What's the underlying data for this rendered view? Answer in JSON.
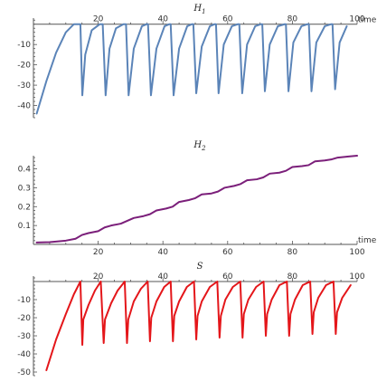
{
  "chart_data": [
    {
      "type": "line",
      "title": "H",
      "title_sub": "1",
      "xlabel": "time",
      "ylabel": "",
      "xlim": [
        0,
        100
      ],
      "ylim": [
        -46,
        3
      ],
      "x_ticks": [
        20,
        40,
        60,
        80,
        100
      ],
      "y_ticks": [
        -40,
        -30,
        -20,
        -10
      ],
      "color": "#5b84b8",
      "series": [
        {
          "x": [
            1,
            4,
            7,
            10,
            12.5,
            14.5,
            15.1,
            16,
            18,
            20.5,
            21.4,
            22.3,
            23.5,
            25.5,
            27.8,
            28.6,
            29.4,
            31,
            33.5,
            35,
            35.4,
            36.3,
            38,
            40.5,
            42,
            42.4,
            43.3,
            45,
            47.5,
            49,
            49.4,
            50.3,
            52,
            54.5,
            56,
            56.4,
            57.2,
            58.8,
            61.3,
            63.2,
            63.6,
            64.5,
            66,
            68.5,
            70.3,
            70.7,
            71.5,
            73,
            75.5,
            77.6,
            78,
            78.8,
            80.3,
            82.8,
            84.7,
            85.1,
            85.9,
            87.4,
            90,
            92,
            92.4,
            93.2,
            94.6,
            96.8
          ],
          "y": [
            -44,
            -28,
            -14,
            -4,
            0,
            0,
            -35,
            -15,
            -3,
            0,
            0,
            -35,
            -12,
            -2,
            0,
            0,
            -35,
            -12,
            -1,
            0,
            0,
            -35,
            -12,
            -1,
            0,
            0,
            -35,
            -12,
            -1,
            0,
            0,
            -34,
            -11,
            -1,
            0,
            0,
            -34,
            -10,
            -1,
            0,
            0,
            -34,
            -10,
            -1,
            0,
            0,
            -33,
            -10,
            -1,
            0,
            0,
            -33,
            -9,
            -1,
            0,
            0,
            -33,
            -9,
            -1,
            0,
            0,
            -32,
            -9,
            -1
          ]
        }
      ]
    },
    {
      "type": "line",
      "title": "H",
      "title_sub": "2",
      "xlabel": "time",
      "ylabel": "",
      "xlim": [
        0,
        100
      ],
      "ylim": [
        0,
        0.47
      ],
      "x_ticks": [
        20,
        40,
        60,
        80,
        100
      ],
      "y_ticks": [
        0.1,
        0.2,
        0.3,
        0.4
      ],
      "color": "#7b1f7a",
      "series": [
        {
          "x": [
            1,
            5,
            10,
            13,
            15,
            17,
            20,
            22,
            24,
            27,
            29,
            31,
            34,
            36,
            38,
            41,
            43,
            45,
            48,
            50,
            52,
            55,
            57,
            59,
            62,
            64,
            66,
            69,
            71,
            73,
            76,
            78,
            80,
            83,
            85,
            87,
            90,
            92,
            94,
            97,
            100
          ],
          "y": [
            0.01,
            0.012,
            0.02,
            0.03,
            0.05,
            0.06,
            0.07,
            0.09,
            0.1,
            0.11,
            0.125,
            0.14,
            0.15,
            0.16,
            0.18,
            0.19,
            0.2,
            0.225,
            0.235,
            0.245,
            0.265,
            0.27,
            0.28,
            0.3,
            0.31,
            0.32,
            0.34,
            0.345,
            0.355,
            0.375,
            0.38,
            0.39,
            0.41,
            0.415,
            0.42,
            0.44,
            0.445,
            0.45,
            0.46,
            0.465,
            0.47
          ]
        }
      ]
    },
    {
      "type": "line",
      "title": "S",
      "title_sub": "",
      "xlabel": "",
      "ylabel": "",
      "xlim": [
        0,
        100
      ],
      "ylim": [
        -52,
        3
      ],
      "x_ticks": [
        20,
        40,
        60,
        80,
        100
      ],
      "y_ticks": [
        -50,
        -40,
        -30,
        -20,
        -10
      ],
      "color": "#e4161a",
      "series": [
        {
          "x": [
            4,
            7,
            10,
            12.5,
            14.5,
            15.1,
            15.4,
            17,
            19,
            20.8,
            21.7,
            22.1,
            24,
            26,
            28.2,
            28.9,
            29.3,
            31,
            33.2,
            35.3,
            36,
            36.4,
            38,
            40.4,
            42.4,
            43.1,
            43.5,
            45,
            47.4,
            49.6,
            50.3,
            50.7,
            52,
            54.5,
            56.8,
            57.5,
            57.9,
            59.3,
            61.6,
            63.9,
            64.6,
            65,
            66.4,
            68.8,
            71.1,
            71.8,
            72.2,
            73.6,
            76,
            78.3,
            79,
            79.4,
            80.8,
            83.2,
            85.5,
            86.2,
            86.6,
            88,
            90.4,
            92.7,
            93.4,
            93.8,
            95.4,
            98
          ],
          "y": [
            -49,
            -32,
            -18,
            -7,
            0,
            -35,
            -21,
            -13,
            -5,
            0,
            -34,
            -21,
            -12,
            -5,
            0,
            -34,
            -21,
            -11,
            -4,
            0,
            -33,
            -20,
            -11,
            -3,
            0,
            -33,
            -19,
            -11,
            -3,
            0,
            -32,
            -19,
            -11,
            -3,
            0,
            -31,
            -19,
            -10,
            -3,
            0,
            -31,
            -18,
            -10,
            -3,
            0,
            -30,
            -18,
            -10,
            -2,
            0,
            -30,
            -18,
            -10,
            -2,
            0,
            -29,
            -17,
            -9,
            -2,
            0,
            -29,
            -17,
            -9,
            -2
          ]
        }
      ]
    }
  ]
}
